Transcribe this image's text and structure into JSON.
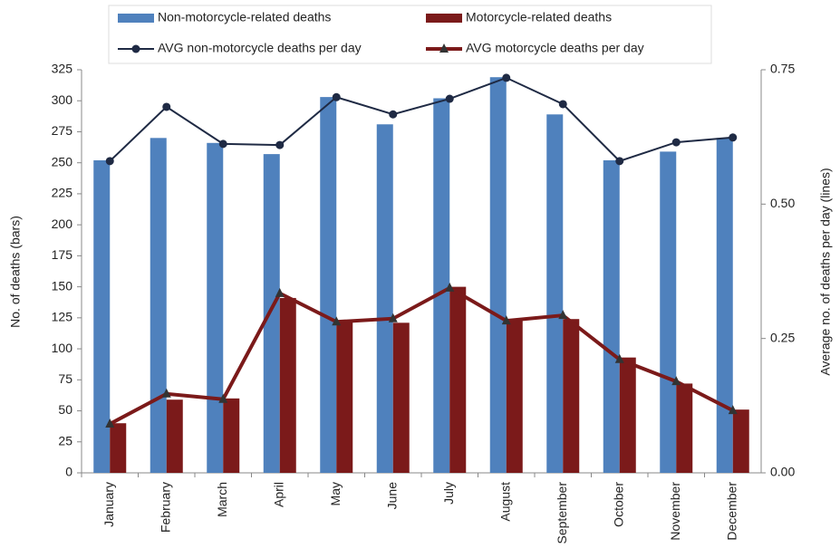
{
  "chart_data": {
    "type": "bar_line",
    "categories": [
      "January",
      "February",
      "March",
      "April",
      "May",
      "June",
      "July",
      "August",
      "September",
      "October",
      "November",
      "December"
    ],
    "series": [
      {
        "name": "Non-motorcycle-related deaths",
        "type": "bar",
        "color": "#4f81bd",
        "values": [
          252,
          270,
          266,
          257,
          303,
          281,
          302,
          319,
          289,
          252,
          259,
          270
        ]
      },
      {
        "name": "Motorcycle-related deaths",
        "type": "bar",
        "color": "#7b1a1a",
        "values": [
          40,
          59,
          60,
          141,
          122,
          121,
          150,
          124,
          124,
          93,
          72,
          51
        ]
      },
      {
        "name": "AVG non-motorcycle deaths per day",
        "type": "line",
        "axis": "y2",
        "marker": "circle",
        "color": "#1f2a44",
        "values": [
          0.58,
          0.681,
          0.612,
          0.61,
          0.699,
          0.667,
          0.696,
          0.735,
          0.686,
          0.58,
          0.615,
          0.624
        ]
      },
      {
        "name": "AVG motorcycle deaths per day",
        "type": "line",
        "axis": "y2",
        "marker": "triangle",
        "color": "#7b1a1a",
        "values": [
          0.091,
          0.147,
          0.137,
          0.334,
          0.281,
          0.287,
          0.344,
          0.283,
          0.293,
          0.211,
          0.17,
          0.116
        ]
      }
    ],
    "ylabel": "No. of deaths (bars)",
    "y2label": "Average no. of deaths per day (lines)",
    "ylim": [
      0,
      325
    ],
    "yticks": [
      0,
      25,
      50,
      75,
      100,
      125,
      150,
      175,
      200,
      225,
      250,
      275,
      300,
      325
    ],
    "y2lim": [
      0,
      0.75
    ],
    "y2ticks": [
      {
        "value": 0,
        "label": "0.00"
      },
      {
        "value": 0.25,
        "label": "0.25"
      },
      {
        "value": 0.5,
        "label": "0.50"
      },
      {
        "value": 0.75,
        "label": "0.75"
      }
    ],
    "legend": "top"
  }
}
